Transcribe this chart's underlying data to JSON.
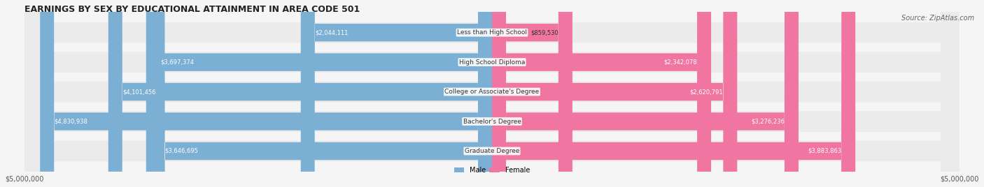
{
  "title": "EARNINGS BY SEX BY EDUCATIONAL ATTAINMENT IN AREA CODE 501",
  "source": "Source: ZipAtlas.com",
  "categories": [
    "Less than High School",
    "High School Diploma",
    "College or Associate's Degree",
    "Bachelor's Degree",
    "Graduate Degree"
  ],
  "male_values": [
    2044111,
    3697374,
    4101456,
    4830938,
    3646695
  ],
  "female_values": [
    859530,
    2342078,
    2620791,
    3276236,
    3883863
  ],
  "male_labels": [
    "$2,044,111",
    "$3,697,374",
    "$4,101,456",
    "$4,830,938",
    "$3,646,695"
  ],
  "female_labels": [
    "$859,530",
    "$2,342,078",
    "$2,620,791",
    "$3,276,236",
    "$3,883,863"
  ],
  "male_color": "#7BAFD4",
  "female_color": "#F075A0",
  "male_color_light": "#A8CBEA",
  "female_color_light": "#F8AECA",
  "background_color": "#F5F5F5",
  "bar_bg_color": "#EBEBEB",
  "axis_label_left": "$5,000,000",
  "axis_label_right": "$5,000,000",
  "max_value": 5000000,
  "legend_male": "Male",
  "legend_female": "Female",
  "title_fontsize": 9,
  "source_fontsize": 7,
  "bar_height": 0.7,
  "figsize": [
    14.06,
    2.68
  ],
  "dpi": 100
}
